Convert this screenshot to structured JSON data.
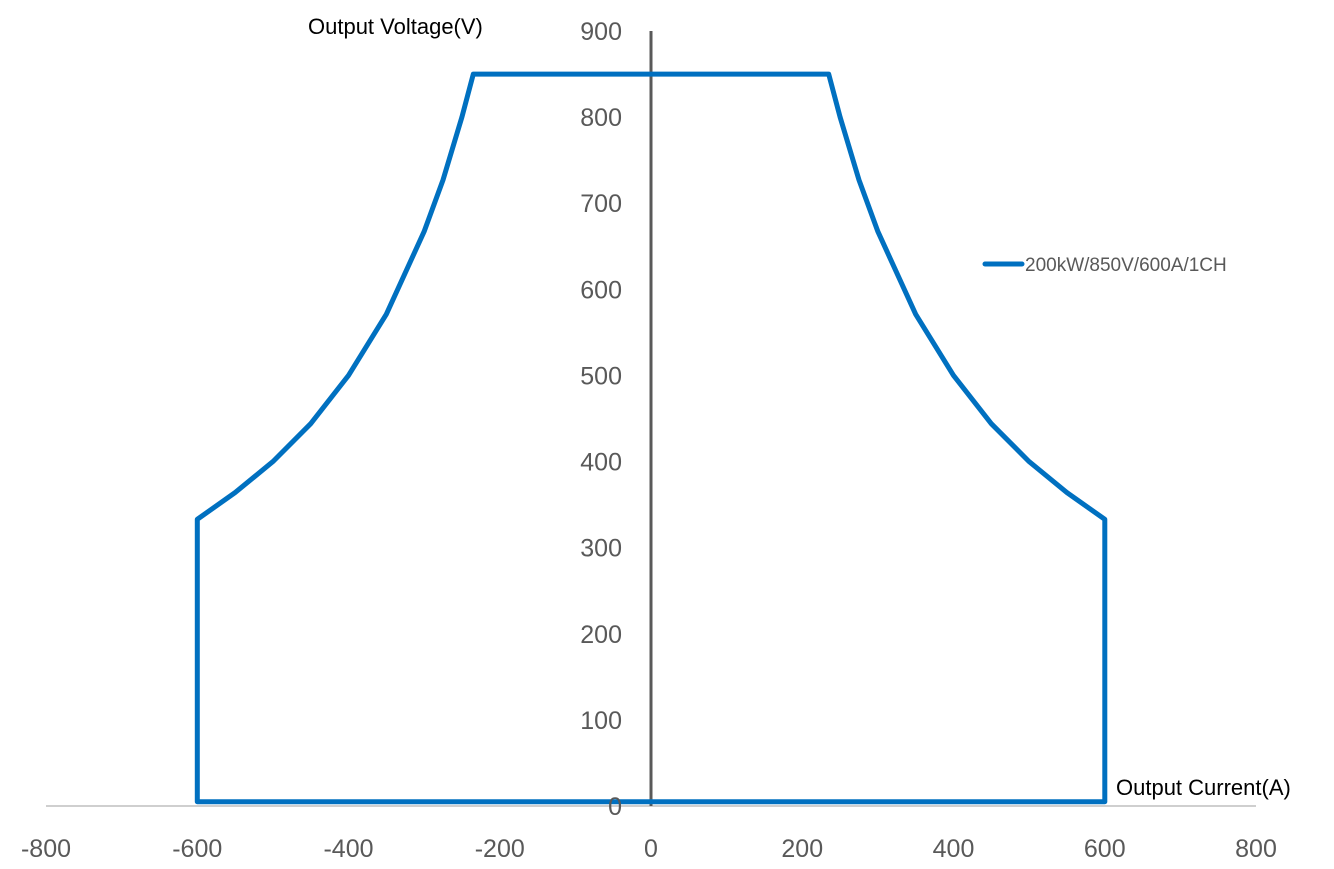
{
  "chart_data": {
    "type": "line",
    "x_axis_title": "Output Current(A)",
    "y_axis_title": "Output Voltage(V)",
    "xlim": [
      -800,
      800
    ],
    "ylim": [
      0,
      900
    ],
    "x_ticks": [
      -800,
      -600,
      -400,
      -200,
      0,
      200,
      400,
      600,
      800
    ],
    "y_ticks": [
      0,
      100,
      200,
      300,
      400,
      500,
      600,
      700,
      800,
      900
    ],
    "grid": false,
    "legend_position": "right",
    "colors": {
      "series": "#0070C0",
      "axis": "#595959",
      "baseline": "#BFBFBF"
    },
    "series": [
      {
        "name": "200kW/850V/600A/1CH",
        "points": [
          [
            -600,
            5
          ],
          [
            -600,
            333
          ],
          [
            -550,
            364
          ],
          [
            -500,
            400
          ],
          [
            -450,
            444
          ],
          [
            -400,
            500
          ],
          [
            -350,
            571
          ],
          [
            -300,
            667
          ],
          [
            -275,
            727
          ],
          [
            -250,
            800
          ],
          [
            -235,
            850
          ],
          [
            235,
            850
          ],
          [
            250,
            800
          ],
          [
            275,
            727
          ],
          [
            300,
            667
          ],
          [
            350,
            571
          ],
          [
            400,
            500
          ],
          [
            450,
            444
          ],
          [
            500,
            400
          ],
          [
            550,
            364
          ],
          [
            600,
            333
          ],
          [
            600,
            5
          ],
          [
            -600,
            5
          ]
        ]
      }
    ]
  }
}
